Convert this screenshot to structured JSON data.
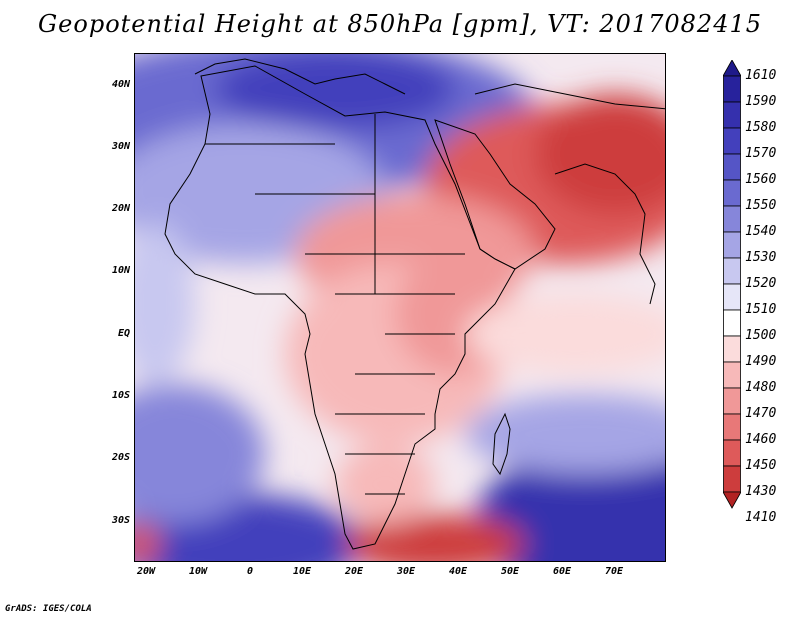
{
  "title": "Geopotential Height at 850hPa [gpm], VT: 2017082415",
  "footer": "GrADS: IGES/COLA",
  "map": {
    "lat_labels": [
      "40N",
      "30N",
      "20N",
      "10N",
      "EQ",
      "10S",
      "20S",
      "30S"
    ],
    "lon_labels": [
      "20W",
      "10W",
      "0",
      "10E",
      "20E",
      "30E",
      "40E",
      "50E",
      "60E",
      "70E"
    ]
  },
  "colorbar": {
    "levels": [
      "1610",
      "1590",
      "1580",
      "1570",
      "1560",
      "1550",
      "1540",
      "1530",
      "1520",
      "1510",
      "1500",
      "1490",
      "1480",
      "1470",
      "1460",
      "1450",
      "1430",
      "1410"
    ],
    "colors": [
      "#1f1a8a",
      "#27229c",
      "#3530ad",
      "#4340bc",
      "#5555c6",
      "#6a6ad0",
      "#8686da",
      "#a5a5e5",
      "#c8c8f0",
      "#e6e6f8",
      "#ffffff",
      "#fbdcdc",
      "#f7b9b9",
      "#f09898",
      "#e87878",
      "#de5a5a",
      "#cd3d3d",
      "#b22222"
    ]
  }
}
